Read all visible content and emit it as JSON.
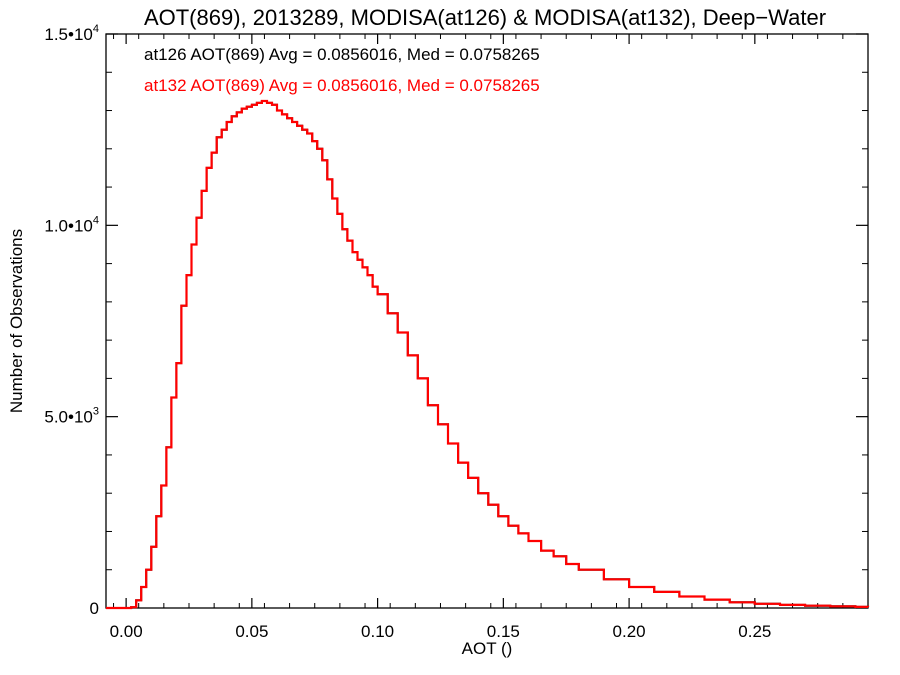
{
  "chart_data": {
    "type": "line",
    "style": "step-histogram",
    "title": "AOT(869), 2013289, MODISA(at126) & MODISA(at132), Deep−Water",
    "xlabel": "AOT ()",
    "ylabel": "Number of Observations",
    "xlim": [
      -0.008,
      0.295
    ],
    "ylim": [
      0,
      15000
    ],
    "grid": false,
    "x_ticks": [
      {
        "value": 0.0,
        "label": "0.00"
      },
      {
        "value": 0.05,
        "label": "0.05"
      },
      {
        "value": 0.1,
        "label": "0.10"
      },
      {
        "value": 0.15,
        "label": "0.15"
      },
      {
        "value": 0.2,
        "label": "0.20"
      },
      {
        "value": 0.25,
        "label": "0.25"
      }
    ],
    "y_ticks": [
      {
        "value": 0,
        "mantissa": "0",
        "exponent": ""
      },
      {
        "value": 5000,
        "mantissa": "5.0•10",
        "exponent": "3"
      },
      {
        "value": 10000,
        "mantissa": "1.0•10",
        "exponent": "4"
      },
      {
        "value": 15000,
        "mantissa": "1.5•10",
        "exponent": "4"
      }
    ],
    "annotations": [
      {
        "text": "at126 AOT(869) Avg = 0.0856016, Med = 0.0758265",
        "color": "#000000"
      },
      {
        "text": "at132 AOT(869) Avg = 0.0856016, Med = 0.0758265",
        "color": "#ff0000"
      }
    ],
    "series": [
      {
        "color": "#000000",
        "x": [
          -0.008,
          0.0,
          0.002,
          0.004,
          0.006,
          0.008,
          0.01,
          0.012,
          0.014,
          0.016,
          0.018,
          0.02,
          0.022,
          0.024,
          0.026,
          0.028,
          0.03,
          0.032,
          0.034,
          0.036,
          0.038,
          0.04,
          0.042,
          0.044,
          0.046,
          0.048,
          0.05,
          0.052,
          0.054,
          0.056,
          0.058,
          0.06,
          0.062,
          0.064,
          0.066,
          0.068,
          0.07,
          0.072,
          0.074,
          0.076,
          0.078,
          0.08,
          0.082,
          0.084,
          0.086,
          0.088,
          0.09,
          0.092,
          0.094,
          0.096,
          0.098,
          0.1,
          0.104,
          0.108,
          0.112,
          0.116,
          0.12,
          0.124,
          0.128,
          0.132,
          0.136,
          0.14,
          0.144,
          0.148,
          0.152,
          0.156,
          0.16,
          0.165,
          0.17,
          0.175,
          0.18,
          0.19,
          0.2,
          0.21,
          0.22,
          0.23,
          0.24,
          0.25,
          0.26,
          0.27,
          0.28,
          0.29,
          0.295
        ],
        "y": [
          0,
          0,
          20,
          200,
          550,
          1000,
          1600,
          2400,
          3200,
          4200,
          5500,
          6400,
          7900,
          8700,
          9500,
          10200,
          10900,
          11500,
          11900,
          12300,
          12500,
          12700,
          12850,
          12950,
          13050,
          13100,
          13150,
          13200,
          13250,
          13200,
          13150,
          13000,
          12900,
          12800,
          12700,
          12600,
          12500,
          12400,
          12200,
          12000,
          11700,
          11200,
          10700,
          10300,
          9900,
          9600,
          9300,
          9100,
          8900,
          8700,
          8400,
          8200,
          7700,
          7200,
          6600,
          6000,
          5300,
          4800,
          4300,
          3800,
          3400,
          3000,
          2700,
          2400,
          2150,
          1950,
          1750,
          1500,
          1350,
          1150,
          1000,
          750,
          550,
          420,
          300,
          220,
          150,
          110,
          80,
          60,
          45,
          30,
          25
        ]
      },
      {
        "color": "#ff0000",
        "x": [
          -0.008,
          0.0,
          0.002,
          0.004,
          0.006,
          0.008,
          0.01,
          0.012,
          0.014,
          0.016,
          0.018,
          0.02,
          0.022,
          0.024,
          0.026,
          0.028,
          0.03,
          0.032,
          0.034,
          0.036,
          0.038,
          0.04,
          0.042,
          0.044,
          0.046,
          0.048,
          0.05,
          0.052,
          0.054,
          0.056,
          0.058,
          0.06,
          0.062,
          0.064,
          0.066,
          0.068,
          0.07,
          0.072,
          0.074,
          0.076,
          0.078,
          0.08,
          0.082,
          0.084,
          0.086,
          0.088,
          0.09,
          0.092,
          0.094,
          0.096,
          0.098,
          0.1,
          0.104,
          0.108,
          0.112,
          0.116,
          0.12,
          0.124,
          0.128,
          0.132,
          0.136,
          0.14,
          0.144,
          0.148,
          0.152,
          0.156,
          0.16,
          0.165,
          0.17,
          0.175,
          0.18,
          0.19,
          0.2,
          0.21,
          0.22,
          0.23,
          0.24,
          0.25,
          0.26,
          0.27,
          0.28,
          0.29,
          0.295
        ],
        "y": [
          0,
          0,
          20,
          200,
          550,
          1000,
          1600,
          2400,
          3200,
          4200,
          5500,
          6400,
          7900,
          8700,
          9500,
          10200,
          10900,
          11500,
          11900,
          12300,
          12500,
          12700,
          12850,
          12950,
          13050,
          13100,
          13150,
          13200,
          13250,
          13200,
          13150,
          13000,
          12900,
          12800,
          12700,
          12600,
          12500,
          12400,
          12200,
          12000,
          11700,
          11200,
          10700,
          10300,
          9900,
          9600,
          9300,
          9100,
          8900,
          8700,
          8400,
          8200,
          7700,
          7200,
          6600,
          6000,
          5300,
          4800,
          4300,
          3800,
          3400,
          3000,
          2700,
          2400,
          2150,
          1950,
          1750,
          1500,
          1350,
          1150,
          1000,
          750,
          550,
          420,
          300,
          220,
          150,
          110,
          80,
          60,
          45,
          30,
          25
        ]
      }
    ]
  }
}
